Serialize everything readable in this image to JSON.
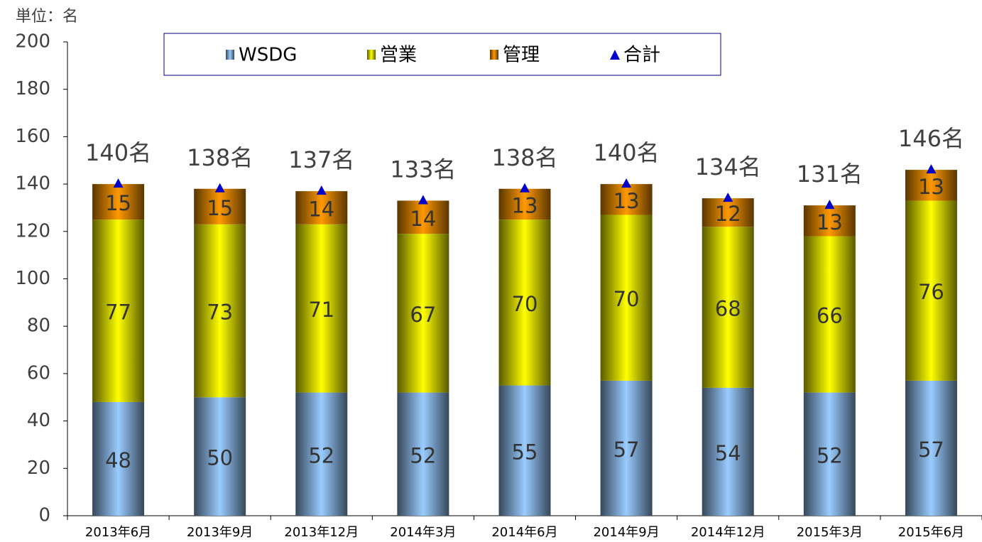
{
  "chart_data": {
    "type": "stacked_bar",
    "y_label": "単位：名",
    "categories": [
      "2013年6月",
      "2013年9月",
      "2013年12月",
      "2014年3月",
      "2014年6月",
      "2014年9月",
      "2014年12月",
      "2015年3月",
      "2015年6月"
    ],
    "series": [
      {
        "name": "WSDG",
        "color": "#99ccff",
        "values": [
          48,
          50,
          52,
          52,
          55,
          57,
          54,
          52,
          57
        ]
      },
      {
        "name": "営業",
        "color": "#ffff00",
        "values": [
          77,
          73,
          71,
          67,
          70,
          70,
          68,
          66,
          76
        ]
      },
      {
        "name": "管理",
        "color": "#ff9900",
        "values": [
          15,
          15,
          14,
          14,
          13,
          13,
          12,
          13,
          13
        ]
      }
    ],
    "total": {
      "name": "合計",
      "color": "#0000cc",
      "values": [
        140,
        138,
        137,
        133,
        138,
        140,
        134,
        131,
        146
      ],
      "value_labels": [
        "140名",
        "138名",
        "137名",
        "133名",
        "138名",
        "140名",
        "134名",
        "131名",
        "146名"
      ]
    },
    "ylim": [
      0,
      200
    ],
    "yticks": [
      0,
      20,
      40,
      60,
      80,
      100,
      120,
      140,
      160,
      180,
      200
    ],
    "legend": "top"
  }
}
